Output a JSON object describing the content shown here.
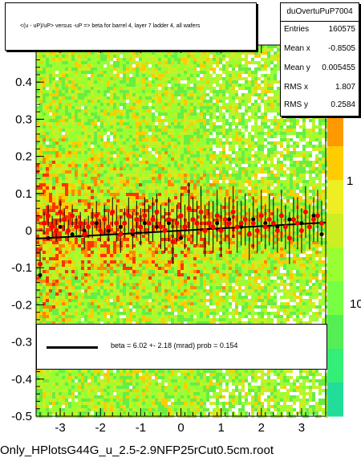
{
  "title": "<(u - uP)/uP> versus -uP => beta for barrel 4, layer 7 ladder 4, all wafers",
  "stats": {
    "name": "duOvertuPuP7004",
    "rows": [
      {
        "label": "Entries",
        "value": "160575"
      },
      {
        "label": "Mean x",
        "value": "-0.8505"
      },
      {
        "label": "Mean y",
        "value": "0.005455"
      },
      {
        "label": "RMS x",
        "value": "1.807"
      },
      {
        "label": "RMS y",
        "value": "0.2584"
      }
    ]
  },
  "legend": {
    "text": "beta =     6.02 +-  2.18 (mrad) prob = 0.154"
  },
  "file_label": "Only_HPlotsG44G_u_2.5-2.9NFP25rCut0.5cm.root",
  "palette": {
    "labels": [
      "1",
      "10"
    ]
  },
  "colors": {
    "frame_bg": "#ffffff",
    "profile_points": "#ff0000",
    "fit_line": "#000000"
  },
  "chart_data": {
    "type": "heatmap",
    "x_ticks": [
      "-3",
      "-2",
      "-1",
      "0",
      "1",
      "2",
      "3"
    ],
    "x_tick_values": [
      -3,
      -2,
      -1,
      0,
      1,
      2,
      3
    ],
    "y_ticks": [
      "-0.5",
      "-0.4",
      "-0.3",
      "-0.2",
      "-0.1",
      "0",
      "0.1",
      "0.2",
      "0.3",
      "0.4"
    ],
    "y_tick_values": [
      -0.5,
      -0.4,
      -0.3,
      -0.2,
      -0.1,
      0,
      0.1,
      0.2,
      0.3,
      0.4
    ],
    "xlim": [
      -3.6,
      3.6
    ],
    "ylim": [
      -0.5,
      0.5
    ],
    "fit_line": {
      "slope": 0.00602,
      "intercept": 0.0
    },
    "profile": {
      "x": [
        -3.5,
        -3.4,
        -3.3,
        -3.2,
        -3.1,
        -3.0,
        -2.9,
        -2.8,
        -2.7,
        -2.6,
        -2.5,
        -2.4,
        -2.3,
        -2.2,
        -2.1,
        -2.0,
        -1.9,
        -1.8,
        -1.7,
        -1.6,
        -1.5,
        -1.4,
        -1.3,
        -1.2,
        -1.1,
        -1.0,
        -0.9,
        -0.8,
        -0.7,
        -0.6,
        -0.5,
        -0.4,
        -0.3,
        -0.2,
        -0.1,
        0.0,
        0.1,
        0.2,
        0.3,
        0.4,
        0.5,
        0.6,
        0.7,
        0.8,
        0.9,
        1.0,
        1.1,
        1.2,
        1.3,
        1.4,
        1.5,
        1.6,
        1.7,
        1.8,
        1.9,
        2.0,
        2.1,
        2.2,
        2.3,
        2.4,
        2.5,
        2.6,
        2.7,
        2.8,
        2.9,
        3.0,
        3.1,
        3.2,
        3.3,
        3.4,
        3.5
      ],
      "y": [
        -0.09,
        0.02,
        0.04,
        0.01,
        0.0,
        0.05,
        0.03,
        0.0,
        0.04,
        0.01,
        0.02,
        -0.01,
        0.01,
        0.02,
        0.04,
        0.0,
        0.03,
        0.01,
        0.05,
        0.02,
        -0.01,
        0.02,
        0.04,
        0.0,
        0.03,
        0.01,
        0.04,
        0.02,
        0.03,
        0.05,
        0.01,
        0.0,
        0.03,
        -0.03,
        0.02,
        0.04,
        0.01,
        0.06,
        0.03,
        0.02,
        0.05,
        0.0,
        0.02,
        0.01,
        0.04,
        0.0,
        0.03,
        0.02,
        0.05,
        0.01,
        0.02,
        0.03,
        -0.01,
        0.02,
        0.0,
        0.04,
        0.01,
        0.03,
        0.02,
        0.0,
        0.04,
        0.01,
        -0.02,
        0.03,
        0.02,
        0.0,
        0.05,
        0.01,
        0.03,
        0.04,
        0.02
      ],
      "yerr": [
        0.04,
        0.03,
        0.03,
        0.03,
        0.03,
        0.03,
        0.03,
        0.03,
        0.03,
        0.03,
        0.03,
        0.04,
        0.03,
        0.04,
        0.04,
        0.03,
        0.04,
        0.04,
        0.04,
        0.05,
        0.05,
        0.04,
        0.05,
        0.05,
        0.05,
        0.05,
        0.05,
        0.05,
        0.06,
        0.05,
        0.06,
        0.06,
        0.06,
        0.06,
        0.05,
        0.06,
        0.06,
        0.07,
        0.06,
        0.06,
        0.07,
        0.07,
        0.06,
        0.07,
        0.07,
        0.07,
        0.06,
        0.07,
        0.07,
        0.07,
        0.06,
        0.07,
        0.07,
        0.07,
        0.06,
        0.07,
        0.06,
        0.07,
        0.07,
        0.06,
        0.07,
        0.06,
        0.07,
        0.06,
        0.07,
        0.06,
        0.07,
        0.06,
        0.06,
        0.07,
        0.06
      ]
    },
    "profile_black": {
      "x": [
        -3.5,
        -3.3,
        -3.0,
        -2.7,
        -2.4,
        -2.1,
        -1.8,
        -1.5,
        -1.2,
        -0.9,
        -0.6,
        -0.3,
        0.0,
        0.3,
        0.6,
        0.9,
        1.2,
        1.5,
        1.8,
        2.1,
        2.4,
        2.7,
        3.0,
        3.3,
        3.5
      ],
      "y": [
        -0.12,
        -0.02,
        0.01,
        -0.01,
        0.0,
        0.02,
        0.0,
        0.01,
        -0.01,
        0.02,
        0.01,
        0.02,
        -0.02,
        0.03,
        0.0,
        0.02,
        0.03,
        0.01,
        0.03,
        0.02,
        0.01,
        0.03,
        0.02,
        0.04,
        -0.01
      ]
    },
    "entries": 160575,
    "mean_x": -0.8505,
    "mean_y": 0.005455,
    "rms_x": 1.807,
    "rms_y": 0.2584
  }
}
